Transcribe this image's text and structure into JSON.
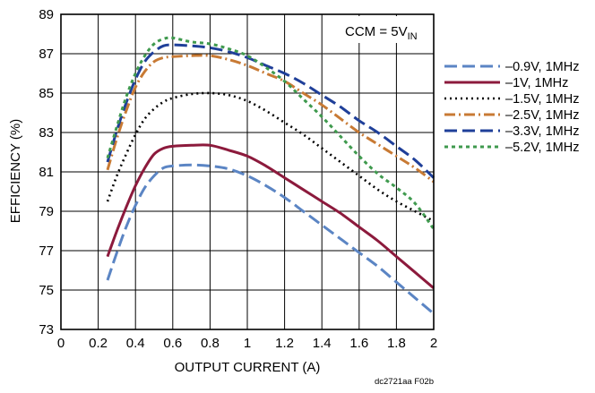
{
  "chart_data": {
    "type": "line",
    "xlabel": "OUTPUT CURRENT (A)",
    "ylabel": "EFFICIENCY (%)",
    "xlim": [
      0,
      2
    ],
    "ylim": [
      73,
      89
    ],
    "grid": true,
    "legend_position": "right",
    "x_ticks": [
      "0",
      "0.2",
      "0.4",
      "0.6",
      "0.8",
      "1",
      "1.2",
      "1.4",
      "1.6",
      "1.8",
      "2"
    ],
    "y_ticks": [
      "73",
      "75",
      "77",
      "79",
      "81",
      "83",
      "85",
      "87",
      "89"
    ],
    "annotation": {
      "prefix": "CCM = 5V",
      "subscript": "IN"
    },
    "credit": "dc2721aa F02b",
    "x": [
      0.25,
      0.3,
      0.35,
      0.4,
      0.45,
      0.5,
      0.55,
      0.6,
      0.7,
      0.8,
      0.9,
      1.0,
      1.1,
      1.2,
      1.3,
      1.4,
      1.5,
      1.6,
      1.7,
      1.8,
      1.9,
      2.0
    ],
    "series": [
      {
        "name": "–0.9V, 1MHz",
        "color": "#5b85c4",
        "dash": "14,6",
        "values": [
          75.5,
          76.9,
          78.2,
          79.3,
          80.2,
          80.8,
          81.2,
          81.3,
          81.35,
          81.3,
          81.15,
          80.8,
          80.3,
          79.7,
          79.0,
          78.3,
          77.6,
          76.9,
          76.2,
          75.4,
          74.6,
          73.8
        ]
      },
      {
        "name": "–1V, 1MHz",
        "color": "#8c1a3c",
        "dash": "none",
        "values": [
          76.7,
          78.0,
          79.2,
          80.3,
          81.2,
          81.9,
          82.2,
          82.3,
          82.35,
          82.35,
          82.1,
          81.8,
          81.3,
          80.7,
          80.1,
          79.5,
          78.9,
          78.2,
          77.5,
          76.7,
          75.9,
          75.1
        ]
      },
      {
        "name": "–1.5V, 1MHz",
        "color": "#000000",
        "dash": "2,4",
        "values": [
          79.5,
          80.8,
          81.9,
          82.9,
          83.7,
          84.2,
          84.55,
          84.75,
          84.95,
          85.0,
          84.9,
          84.6,
          84.1,
          83.5,
          82.9,
          82.2,
          81.5,
          80.8,
          80.1,
          79.5,
          79.0,
          78.5
        ]
      },
      {
        "name": "–2.5V, 1MHz",
        "color": "#c87a34",
        "dash": "12,4,2,4",
        "values": [
          81.1,
          82.7,
          84.1,
          85.3,
          86.1,
          86.6,
          86.8,
          86.85,
          86.9,
          86.9,
          86.7,
          86.4,
          86.0,
          85.6,
          85.0,
          84.4,
          83.7,
          83.0,
          82.4,
          81.8,
          81.2,
          80.5
        ]
      },
      {
        "name": "–3.3V, 1MHz",
        "color": "#1f3f99",
        "dash": "14,6",
        "values": [
          81.5,
          83.1,
          84.5,
          85.7,
          86.6,
          87.1,
          87.4,
          87.45,
          87.4,
          87.3,
          87.1,
          86.8,
          86.4,
          86.0,
          85.5,
          84.9,
          84.3,
          83.6,
          83.0,
          82.3,
          81.6,
          80.7
        ]
      },
      {
        "name": "–5.2V, 1MHz",
        "color": "#3f9a4e",
        "dash": "4,4",
        "values": [
          81.7,
          83.3,
          84.8,
          86.0,
          86.9,
          87.5,
          87.75,
          87.8,
          87.6,
          87.5,
          87.25,
          86.9,
          86.3,
          85.6,
          84.7,
          83.8,
          82.8,
          81.8,
          80.9,
          80.2,
          79.4,
          78.1
        ]
      }
    ]
  }
}
